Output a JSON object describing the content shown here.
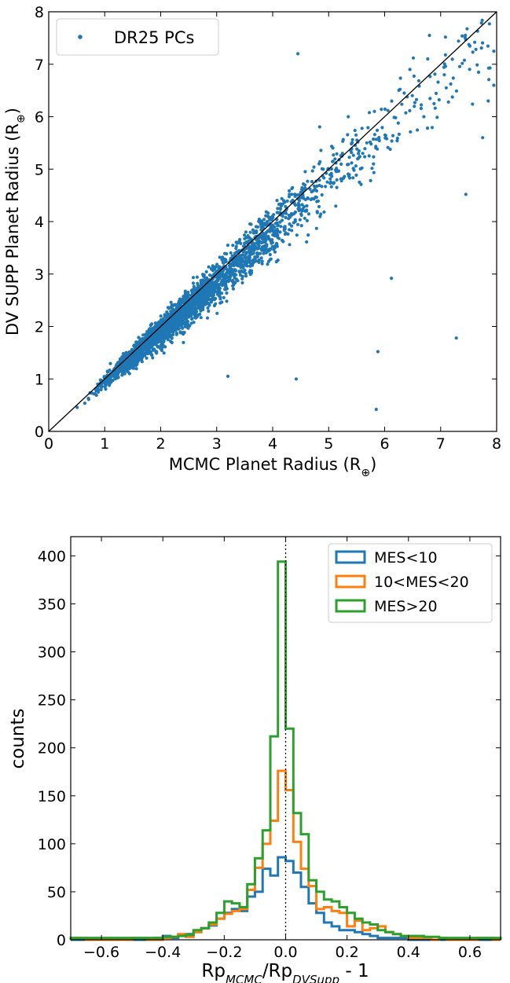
{
  "chart_data": [
    {
      "type": "scatter",
      "title": "",
      "xlabel": "MCMC Planet Radius (R",
      "xlabel_sub": "⊕",
      "xlabel_end": ")",
      "ylabel": "DV SUPP Planet Radius (R",
      "ylabel_sub": "⊕",
      "ylabel_end": ")",
      "xlim": [
        0,
        8
      ],
      "ylim": [
        0,
        8
      ],
      "xticks": [
        "0",
        "1",
        "2",
        "3",
        "4",
        "5",
        "6",
        "7",
        "8"
      ],
      "yticks": [
        "0",
        "1",
        "2",
        "3",
        "4",
        "5",
        "6",
        "7",
        "8"
      ],
      "grid": false,
      "legend_position": "top-left",
      "series": [
        {
          "name": "DR25 PCs",
          "color": "#1f77b4",
          "points_generated_from_trend": true
        }
      ],
      "reference_line": {
        "from": [
          0,
          0
        ],
        "to": [
          8,
          8
        ],
        "color": "#000000"
      },
      "outliers": [
        [
          4.45,
          7.2
        ],
        [
          5.85,
          0.42
        ],
        [
          4.42,
          1.0
        ],
        [
          5.88,
          1.52
        ],
        [
          6.12,
          2.92
        ],
        [
          7.28,
          1.78
        ],
        [
          7.45,
          4.52
        ],
        [
          7.75,
          5.6
        ],
        [
          7.95,
          6.6
        ],
        [
          7.95,
          7.25
        ],
        [
          7.85,
          6.3
        ],
        [
          6.8,
          7.55
        ],
        [
          6.45,
          6.9
        ],
        [
          6.35,
          6.45
        ],
        [
          7.1,
          6.55
        ],
        [
          6.7,
          6.0
        ],
        [
          5.35,
          6.0
        ],
        [
          5.8,
          5.1
        ],
        [
          5.55,
          4.75
        ],
        [
          3.2,
          1.05
        ]
      ]
    },
    {
      "type": "histogram",
      "title": "",
      "xlabel_main": "Rp",
      "xlabel_sub1": "MCMC",
      "xlabel_mid": "/Rp",
      "xlabel_sub2": "DVSupp",
      "xlabel_end": " - 1",
      "ylabel": "counts",
      "xlim": [
        -0.7,
        0.7
      ],
      "ylim": [
        0,
        420
      ],
      "xticks": [
        {
          "value": -0.6,
          "label": "−0.6"
        },
        {
          "value": -0.4,
          "label": "−0.4"
        },
        {
          "value": -0.2,
          "label": "−0.2"
        },
        {
          "value": 0.0,
          "label": "0.0"
        },
        {
          "value": 0.2,
          "label": "0.2"
        },
        {
          "value": 0.4,
          "label": "0.4"
        },
        {
          "value": 0.6,
          "label": "0.6"
        }
      ],
      "yticks": [
        "0",
        "50",
        "100",
        "150",
        "200",
        "250",
        "300",
        "350",
        "400"
      ],
      "grid": false,
      "legend_position": "top-right",
      "bin_edges": [
        -0.7,
        -0.675,
        -0.65,
        -0.625,
        -0.6,
        -0.575,
        -0.55,
        -0.525,
        -0.5,
        -0.475,
        -0.45,
        -0.425,
        -0.4,
        -0.375,
        -0.35,
        -0.325,
        -0.3,
        -0.275,
        -0.25,
        -0.225,
        -0.2,
        -0.175,
        -0.15,
        -0.125,
        -0.1,
        -0.075,
        -0.05,
        -0.025,
        0.0,
        0.025,
        0.05,
        0.075,
        0.1,
        0.125,
        0.15,
        0.175,
        0.2,
        0.225,
        0.25,
        0.275,
        0.3,
        0.325,
        0.35,
        0.375,
        0.4,
        0.425,
        0.45,
        0.475,
        0.5,
        0.525,
        0.55,
        0.575,
        0.6,
        0.625,
        0.65,
        0.675,
        0.7
      ],
      "series": [
        {
          "name": "MES<10",
          "color": "#1f77b4",
          "counts": [
            0,
            0,
            0,
            0,
            0,
            0,
            0,
            0,
            0,
            0,
            0,
            2,
            4,
            2,
            5,
            6,
            8,
            12,
            15,
            22,
            28,
            32,
            30,
            45,
            50,
            74,
            67,
            86,
            82,
            70,
            55,
            38,
            28,
            18,
            14,
            10,
            10,
            8,
            6,
            4,
            2,
            2,
            2,
            2,
            0,
            0,
            0,
            0,
            0,
            0,
            0,
            0,
            0,
            0,
            0,
            0
          ]
        },
        {
          "name": "10<MES<20",
          "color": "#ff7f0e",
          "counts": [
            2,
            2,
            0,
            0,
            0,
            0,
            0,
            0,
            2,
            2,
            0,
            0,
            2,
            3,
            6,
            3,
            8,
            12,
            16,
            22,
            27,
            30,
            32,
            52,
            75,
            100,
            124,
            176,
            156,
            102,
            74,
            56,
            32,
            34,
            30,
            28,
            14,
            20,
            10,
            12,
            14,
            8,
            6,
            4,
            2,
            2,
            2,
            0,
            2,
            0,
            0,
            0,
            0,
            2,
            2,
            0
          ]
        },
        {
          "name": "MES>20",
          "color": "#2ca02c",
          "counts": [
            2,
            2,
            2,
            2,
            2,
            2,
            2,
            2,
            2,
            2,
            2,
            2,
            3,
            3,
            4,
            5,
            10,
            12,
            18,
            28,
            40,
            38,
            34,
            58,
            85,
            114,
            212,
            394,
            220,
            132,
            110,
            62,
            50,
            42,
            40,
            34,
            28,
            22,
            18,
            16,
            10,
            8,
            6,
            4,
            4,
            4,
            3,
            3,
            2,
            2,
            2,
            2,
            2,
            2,
            2,
            2
          ]
        }
      ],
      "reference_line": {
        "x": 0.0,
        "style": "dotted",
        "color": "#000000"
      }
    }
  ]
}
